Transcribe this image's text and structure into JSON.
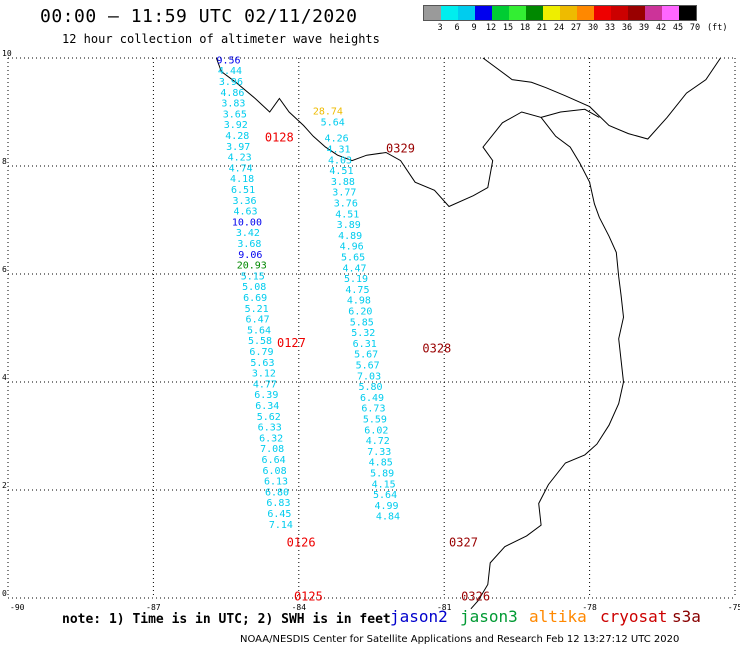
{
  "title": "00:00 – 11:59 UTC 02/11/2020",
  "subtitle": "12 hour collection of altimeter wave heights",
  "legend": {
    "unit": "(ft)",
    "items": [
      {
        "label": "3",
        "color": "#9a9a9a"
      },
      {
        "label": "6",
        "color": "#00eeee"
      },
      {
        "label": "9",
        "color": "#00ccee"
      },
      {
        "label": "12",
        "color": "#0000ee"
      },
      {
        "label": "15",
        "color": "#00cc33"
      },
      {
        "label": "18",
        "color": "#33ee33"
      },
      {
        "label": "21",
        "color": "#008800"
      },
      {
        "label": "24",
        "color": "#eeee00"
      },
      {
        "label": "27",
        "color": "#eebb00"
      },
      {
        "label": "30",
        "color": "#ff8800"
      },
      {
        "label": "33",
        "color": "#ee0000"
      },
      {
        "label": "36",
        "color": "#cc0000"
      },
      {
        "label": "39",
        "color": "#990000"
      },
      {
        "label": "42",
        "color": "#cc3399"
      },
      {
        "label": "45",
        "color": "#ff66ff"
      },
      {
        "label": "70",
        "color": "#000000"
      }
    ]
  },
  "axes": {
    "x_ticks": [
      {
        "value": -90,
        "label": "-90"
      },
      {
        "value": -87,
        "label": "-87"
      },
      {
        "value": -84,
        "label": "-84"
      },
      {
        "value": -81,
        "label": "-81"
      },
      {
        "value": -78,
        "label": "-78"
      },
      {
        "value": -75,
        "label": "-75"
      }
    ],
    "y_ticks": [
      {
        "value": 0,
        "label": "0"
      },
      {
        "value": 2,
        "label": "2"
      },
      {
        "value": 4,
        "label": "4"
      },
      {
        "value": 6,
        "label": "6"
      },
      {
        "value": 8,
        "label": "8"
      },
      {
        "value": 10,
        "label": "10"
      }
    ],
    "lon_range": [
      -90,
      -75
    ],
    "lat_range": [
      0,
      10
    ],
    "grid": "dotted"
  },
  "tracks": [
    {
      "label": "0128",
      "color": "#ee0000",
      "lon": -84.7,
      "lat": 8.45
    },
    {
      "label": "0127",
      "color": "#ee0000",
      "lon": -84.45,
      "lat": 4.65
    },
    {
      "label": "0126",
      "color": "#ee0000",
      "lon": -84.25,
      "lat": 0.95
    },
    {
      "label": "0125",
      "color": "#ee0000",
      "lon": -84.1,
      "lat": -0.05
    },
    {
      "label": "0329",
      "color": "#990000",
      "lon": -82.2,
      "lat": 8.25
    },
    {
      "label": "0328",
      "color": "#990000",
      "lon": -81.45,
      "lat": 4.55
    },
    {
      "label": "0327",
      "color": "#990000",
      "lon": -80.9,
      "lat": 0.95
    },
    {
      "label": "0326",
      "color": "#990000",
      "lon": -80.65,
      "lat": -0.05
    }
  ],
  "observations": [
    {
      "lon": -85.45,
      "lat": 9.9,
      "value": "9.56",
      "color": "#0000ee"
    },
    {
      "lon": -85.42,
      "lat": 9.7,
      "value": "4.44",
      "color": "#00ccee"
    },
    {
      "lon": -85.4,
      "lat": 9.5,
      "value": "3.96",
      "color": "#00ccee"
    },
    {
      "lon": -85.37,
      "lat": 9.3,
      "value": "4.86",
      "color": "#00ccee"
    },
    {
      "lon": -85.35,
      "lat": 9.1,
      "value": "3.83",
      "color": "#00ccee"
    },
    {
      "lon": -85.32,
      "lat": 8.9,
      "value": "3.65",
      "color": "#00ccee"
    },
    {
      "lon": -85.3,
      "lat": 8.7,
      "value": "3.92",
      "color": "#00ccee"
    },
    {
      "lon": -85.27,
      "lat": 8.5,
      "value": "4.28",
      "color": "#00ccee"
    },
    {
      "lon": -85.25,
      "lat": 8.3,
      "value": "3.97",
      "color": "#00ccee"
    },
    {
      "lon": -85.22,
      "lat": 8.1,
      "value": "4.23",
      "color": "#00ccee"
    },
    {
      "lon": -85.2,
      "lat": 7.9,
      "value": "4.74",
      "color": "#00ccee"
    },
    {
      "lon": -85.17,
      "lat": 7.7,
      "value": "4.18",
      "color": "#00ccee"
    },
    {
      "lon": -85.15,
      "lat": 7.5,
      "value": "6.51",
      "color": "#00ccee"
    },
    {
      "lon": -85.12,
      "lat": 7.3,
      "value": "3.36",
      "color": "#00ccee"
    },
    {
      "lon": -85.1,
      "lat": 7.1,
      "value": "4.63",
      "color": "#00ccee"
    },
    {
      "lon": -85.07,
      "lat": 6.9,
      "value": "10.00",
      "color": "#0000ee"
    },
    {
      "lon": -85.05,
      "lat": 6.7,
      "value": "3.42",
      "color": "#00ccee"
    },
    {
      "lon": -85.02,
      "lat": 6.5,
      "value": "3.68",
      "color": "#00ccee"
    },
    {
      "lon": -85.0,
      "lat": 6.3,
      "value": "9.06",
      "color": "#0000ee"
    },
    {
      "lon": -84.97,
      "lat": 6.1,
      "value": "20.93",
      "color": "#008800"
    },
    {
      "lon": -84.95,
      "lat": 5.9,
      "value": "5.15",
      "color": "#00ccee"
    },
    {
      "lon": -84.92,
      "lat": 5.7,
      "value": "5.08",
      "color": "#00ccee"
    },
    {
      "lon": -84.9,
      "lat": 5.5,
      "value": "6.69",
      "color": "#00ccee"
    },
    {
      "lon": -84.87,
      "lat": 5.3,
      "value": "5.21",
      "color": "#00ccee"
    },
    {
      "lon": -84.85,
      "lat": 5.1,
      "value": "6.47",
      "color": "#00ccee"
    },
    {
      "lon": -84.82,
      "lat": 4.9,
      "value": "5.64",
      "color": "#00ccee"
    },
    {
      "lon": -84.8,
      "lat": 4.7,
      "value": "5.58",
      "color": "#00ccee"
    },
    {
      "lon": -84.77,
      "lat": 4.5,
      "value": "6.79",
      "color": "#00ccee"
    },
    {
      "lon": -84.75,
      "lat": 4.3,
      "value": "5.63",
      "color": "#00ccee"
    },
    {
      "lon": -84.72,
      "lat": 4.1,
      "value": "3.12",
      "color": "#00ccee"
    },
    {
      "lon": -84.7,
      "lat": 3.9,
      "value": "4.77",
      "color": "#00ccee"
    },
    {
      "lon": -84.67,
      "lat": 3.7,
      "value": "6.39",
      "color": "#00ccee"
    },
    {
      "lon": -84.65,
      "lat": 3.5,
      "value": "6.34",
      "color": "#00ccee"
    },
    {
      "lon": -84.62,
      "lat": 3.3,
      "value": "5.62",
      "color": "#00ccee"
    },
    {
      "lon": -84.6,
      "lat": 3.1,
      "value": "6.33",
      "color": "#00ccee"
    },
    {
      "lon": -84.57,
      "lat": 2.9,
      "value": "6.32",
      "color": "#00ccee"
    },
    {
      "lon": -84.55,
      "lat": 2.7,
      "value": "7.08",
      "color": "#00ccee"
    },
    {
      "lon": -84.52,
      "lat": 2.5,
      "value": "6.64",
      "color": "#00ccee"
    },
    {
      "lon": -84.5,
      "lat": 2.3,
      "value": "6.08",
      "color": "#00ccee"
    },
    {
      "lon": -84.47,
      "lat": 2.1,
      "value": "6.13",
      "color": "#00ccee"
    },
    {
      "lon": -84.45,
      "lat": 1.9,
      "value": "6.80",
      "color": "#00ccee"
    },
    {
      "lon": -84.42,
      "lat": 1.7,
      "value": "6.83",
      "color": "#00ccee"
    },
    {
      "lon": -84.4,
      "lat": 1.5,
      "value": "6.45",
      "color": "#00ccee"
    },
    {
      "lon": -84.37,
      "lat": 1.3,
      "value": "7.14",
      "color": "#00ccee"
    },
    {
      "lon": -83.4,
      "lat": 8.95,
      "value": "28.74",
      "color": "#eebb00"
    },
    {
      "lon": -83.3,
      "lat": 8.75,
      "value": "5.64",
      "color": "#00ccee"
    },
    {
      "lon": -83.22,
      "lat": 8.45,
      "value": "4.26",
      "color": "#00ccee"
    },
    {
      "lon": -83.18,
      "lat": 8.25,
      "value": "4.31",
      "color": "#00ccee"
    },
    {
      "lon": -83.15,
      "lat": 8.05,
      "value": "4.03",
      "color": "#00ccee"
    },
    {
      "lon": -83.12,
      "lat": 7.85,
      "value": "4.51",
      "color": "#00ccee"
    },
    {
      "lon": -83.09,
      "lat": 7.65,
      "value": "3.88",
      "color": "#00ccee"
    },
    {
      "lon": -83.06,
      "lat": 7.45,
      "value": "3.77",
      "color": "#00ccee"
    },
    {
      "lon": -83.03,
      "lat": 7.25,
      "value": "3.76",
      "color": "#00ccee"
    },
    {
      "lon": -83.0,
      "lat": 7.05,
      "value": "4.51",
      "color": "#00ccee"
    },
    {
      "lon": -82.97,
      "lat": 6.85,
      "value": "3.89",
      "color": "#00ccee"
    },
    {
      "lon": -82.94,
      "lat": 6.65,
      "value": "4.89",
      "color": "#00ccee"
    },
    {
      "lon": -82.91,
      "lat": 6.45,
      "value": "4.96",
      "color": "#00ccee"
    },
    {
      "lon": -82.88,
      "lat": 6.25,
      "value": "5.65",
      "color": "#00ccee"
    },
    {
      "lon": -82.85,
      "lat": 6.05,
      "value": "4.47",
      "color": "#00ccee"
    },
    {
      "lon": -82.82,
      "lat": 5.85,
      "value": "5.19",
      "color": "#00ccee"
    },
    {
      "lon": -82.79,
      "lat": 5.65,
      "value": "4.75",
      "color": "#00ccee"
    },
    {
      "lon": -82.76,
      "lat": 5.45,
      "value": "4.98",
      "color": "#00ccee"
    },
    {
      "lon": -82.73,
      "lat": 5.25,
      "value": "6.20",
      "color": "#00ccee"
    },
    {
      "lon": -82.7,
      "lat": 5.05,
      "value": "5.85",
      "color": "#00ccee"
    },
    {
      "lon": -82.67,
      "lat": 4.85,
      "value": "5.32",
      "color": "#00ccee"
    },
    {
      "lon": -82.64,
      "lat": 4.65,
      "value": "6.31",
      "color": "#00ccee"
    },
    {
      "lon": -82.61,
      "lat": 4.45,
      "value": "5.67",
      "color": "#00ccee"
    },
    {
      "lon": -82.58,
      "lat": 4.25,
      "value": "5.67",
      "color": "#00ccee"
    },
    {
      "lon": -82.55,
      "lat": 4.05,
      "value": "7.03",
      "color": "#00ccee"
    },
    {
      "lon": -82.52,
      "lat": 3.85,
      "value": "5.80",
      "color": "#00ccee"
    },
    {
      "lon": -82.49,
      "lat": 3.65,
      "value": "6.49",
      "color": "#00ccee"
    },
    {
      "lon": -82.46,
      "lat": 3.45,
      "value": "6.73",
      "color": "#00ccee"
    },
    {
      "lon": -82.43,
      "lat": 3.25,
      "value": "5.59",
      "color": "#00ccee"
    },
    {
      "lon": -82.4,
      "lat": 3.05,
      "value": "6.02",
      "color": "#00ccee"
    },
    {
      "lon": -82.37,
      "lat": 2.85,
      "value": "4.72",
      "color": "#00ccee"
    },
    {
      "lon": -82.34,
      "lat": 2.65,
      "value": "7.33",
      "color": "#00ccee"
    },
    {
      "lon": -82.31,
      "lat": 2.45,
      "value": "4.85",
      "color": "#00ccee"
    },
    {
      "lon": -82.28,
      "lat": 2.25,
      "value": "5.89",
      "color": "#00ccee"
    },
    {
      "lon": -82.25,
      "lat": 2.05,
      "value": "4.15",
      "color": "#00ccee"
    },
    {
      "lon": -82.22,
      "lat": 1.85,
      "value": "5.64",
      "color": "#00ccee"
    },
    {
      "lon": -82.19,
      "lat": 1.65,
      "value": "4.99",
      "color": "#00ccee"
    },
    {
      "lon": -82.16,
      "lat": 1.45,
      "value": "4.84",
      "color": "#00ccee"
    }
  ],
  "note": "note: 1) Time is in UTC; 2) SWH is in feet",
  "satellites": [
    {
      "name": "jason2",
      "color": "#0000cc"
    },
    {
      "name": "jason3",
      "color": "#009933"
    },
    {
      "name": "altika",
      "color": "#ff8800"
    },
    {
      "name": "cryosat",
      "color": "#cc0000"
    },
    {
      "name": "s3a",
      "color": "#880000"
    }
  ],
  "footer": "NOAA/NESDIS Center for Satellite Applications and Research    Feb 12 13:27:12 UTC 2020"
}
